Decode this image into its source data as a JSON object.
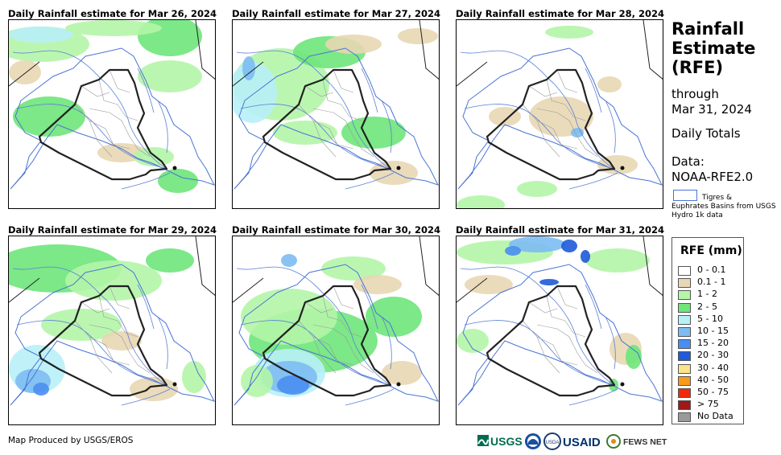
{
  "panels": [
    {
      "title": "Daily Rainfall estimate for Mar 26, 2024"
    },
    {
      "title": "Daily Rainfall estimate for Mar 27, 2024"
    },
    {
      "title": "Daily Rainfall estimate for Mar 28, 2024"
    },
    {
      "title": "Daily Rainfall estimate for Mar 29, 2024"
    },
    {
      "title": "Daily Rainfall estimate for Mar 30, 2024"
    },
    {
      "title": "Daily Rainfall estimate for Mar 31, 2024"
    }
  ],
  "sidebar": {
    "title": "Rainfall Estimate (RFE)",
    "through_label": "through",
    "through_date": "Mar 31, 2024",
    "totals": "Daily Totals",
    "data_label": "Data:",
    "data_source": "NOAA-RFE2.0",
    "basin_label_1": "Tigres &",
    "basin_label_2": "Euphrates Basins from USGS Hydro 1k data",
    "basin_color": "#4a74d4"
  },
  "legend": {
    "title": "RFE (mm)",
    "items": [
      {
        "label": "0 - 0.1",
        "color": "#ffffff"
      },
      {
        "label": "0.1 - 1",
        "color": "#e8d7b4"
      },
      {
        "label": "1 - 2",
        "color": "#b4f5a8"
      },
      {
        "label": "2 - 5",
        "color": "#6ee67a"
      },
      {
        "label": "5 - 10",
        "color": "#b8f0f8"
      },
      {
        "label": "10 - 15",
        "color": "#7cbcf2"
      },
      {
        "label": "15 - 20",
        "color": "#4a8ef0"
      },
      {
        "label": "20 - 30",
        "color": "#1f5ad8"
      },
      {
        "label": "30 - 40",
        "color": "#fbe38a"
      },
      {
        "label": "40 - 50",
        "color": "#f89a1a"
      },
      {
        "label": "50 - 75",
        "color": "#f02a0a"
      },
      {
        "label": "> 75",
        "color": "#a01818"
      },
      {
        "label": "No Data",
        "color": "#9a9a9a"
      }
    ]
  },
  "footer": {
    "credit": "Map Produced by USGS/EROS",
    "logos": [
      "USGS",
      "NOAA",
      "USDA",
      "USAID",
      "FEWS NET"
    ]
  }
}
